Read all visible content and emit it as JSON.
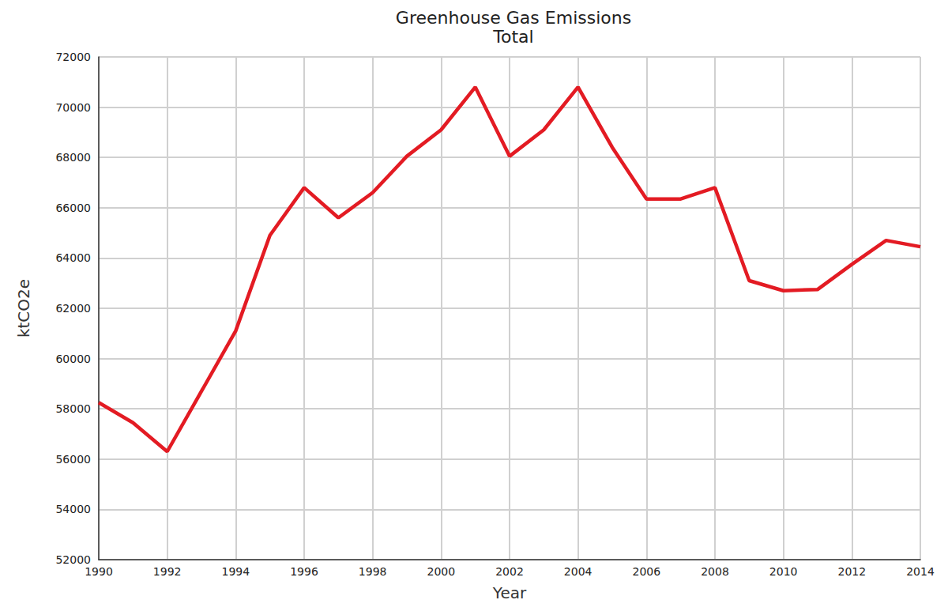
{
  "chart_data": {
    "type": "line",
    "title": "Greenhouse Gas Emissions",
    "subtitle": "Total",
    "x_label": "Year",
    "y_label": "ktCO2e",
    "x": [
      1990,
      1991,
      1992,
      1993,
      1994,
      1995,
      1996,
      1997,
      1998,
      1999,
      2000,
      2001,
      2002,
      2003,
      2004,
      2005,
      2006,
      2007,
      2008,
      2009,
      2010,
      2011,
      2012,
      2013,
      2014
    ],
    "values": [
      58250,
      57450,
      56300,
      58700,
      61100,
      64900,
      66800,
      65600,
      66600,
      68050,
      69100,
      70800,
      68050,
      69100,
      70800,
      68400,
      66350,
      66350,
      66800,
      63100,
      62700,
      62750,
      63750,
      64700,
      64450
    ],
    "color": "#e31b23",
    "marker": "none",
    "line_style": "solid",
    "xlim": [
      1990,
      2014
    ],
    "xticks": [
      1990,
      1992,
      1994,
      1996,
      1998,
      2000,
      2002,
      2004,
      2006,
      2008,
      2010,
      2012,
      2014
    ],
    "ylim": [
      52000,
      72000
    ],
    "yticks": [
      52000,
      54000,
      56000,
      58000,
      60000,
      62000,
      64000,
      66000,
      68000,
      70000,
      72000
    ],
    "grid": true
  }
}
